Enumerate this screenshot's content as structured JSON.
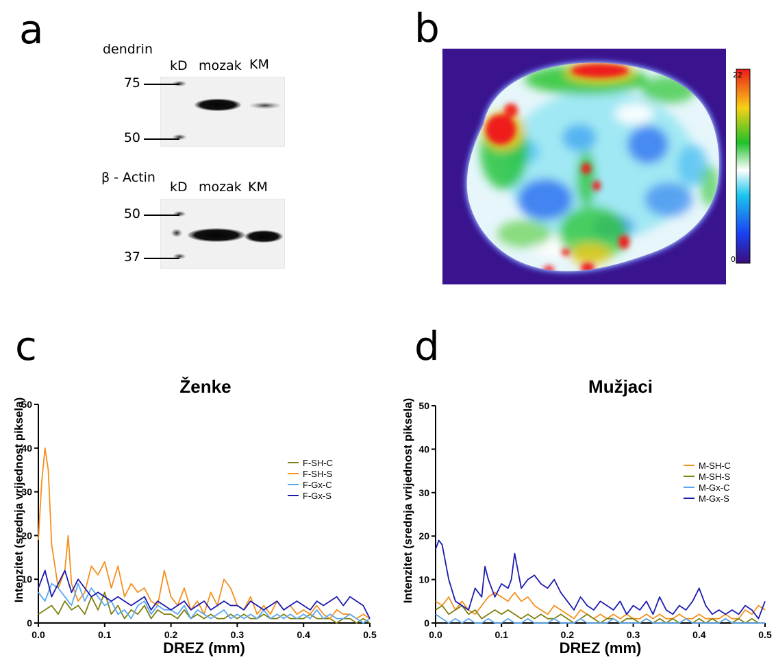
{
  "panel_a": {
    "letter": "a",
    "top_blot": {
      "protein": "dendrin",
      "lane_headers": [
        "kD",
        "mozak",
        "KM"
      ],
      "markers": [
        "75",
        "50"
      ]
    },
    "bottom_blot": {
      "protein": "β - Actin",
      "lane_headers": [
        "kD",
        "mozak",
        "KM"
      ],
      "markers": [
        "50",
        "37"
      ]
    }
  },
  "panel_b": {
    "letter": "b",
    "colorbar": {
      "max_label": "22",
      "min_label": "0"
    }
  },
  "chart_data": [
    {
      "panel": "c",
      "type": "line",
      "title": "Ženke",
      "xlabel": "DREZ (mm)",
      "ylabel": "Intenzitet (srednja vrijednost piksela)",
      "xlim": [
        0,
        0.5
      ],
      "ylim": [
        0,
        50
      ],
      "xticks": [
        "0.0",
        "0.1",
        "0.2",
        "0.3",
        "0.4",
        "0.5"
      ],
      "yticks": [
        "0",
        "10",
        "20",
        "30",
        "40",
        "50"
      ],
      "grid": false,
      "legend_position": "right",
      "series": [
        {
          "name": "F-SH-C",
          "color": "#7f7f10",
          "x": [
            0,
            0.01,
            0.02,
            0.03,
            0.04,
            0.05,
            0.06,
            0.07,
            0.08,
            0.09,
            0.1,
            0.11,
            0.12,
            0.13,
            0.14,
            0.15,
            0.16,
            0.17,
            0.18,
            0.19,
            0.2,
            0.21,
            0.22,
            0.23,
            0.24,
            0.25,
            0.26,
            0.27,
            0.28,
            0.29,
            0.3,
            0.31,
            0.32,
            0.33,
            0.34,
            0.35,
            0.36,
            0.37,
            0.38,
            0.39,
            0.4,
            0.41,
            0.42,
            0.43,
            0.44,
            0.45,
            0.46,
            0.47,
            0.48,
            0.49,
            0.5
          ],
          "y": [
            2,
            3,
            4,
            2,
            5,
            3,
            4,
            2,
            6,
            3,
            7,
            2,
            4,
            1,
            3,
            2,
            4,
            1,
            3,
            2,
            2,
            1,
            3,
            1,
            2,
            1,
            2,
            1,
            1,
            2,
            1,
            2,
            1,
            1,
            2,
            1,
            1,
            2,
            1,
            1,
            1,
            2,
            1,
            1,
            1,
            0,
            1,
            1,
            0,
            1,
            0
          ]
        },
        {
          "name": "F-SH-S",
          "color": "#f5901e",
          "x": [
            0,
            0.005,
            0.01,
            0.015,
            0.02,
            0.03,
            0.04,
            0.045,
            0.05,
            0.06,
            0.07,
            0.08,
            0.09,
            0.1,
            0.11,
            0.12,
            0.13,
            0.14,
            0.15,
            0.16,
            0.17,
            0.18,
            0.19,
            0.2,
            0.21,
            0.22,
            0.23,
            0.24,
            0.25,
            0.26,
            0.27,
            0.28,
            0.29,
            0.3,
            0.31,
            0.32,
            0.33,
            0.34,
            0.35,
            0.36,
            0.37,
            0.38,
            0.39,
            0.4,
            0.41,
            0.42,
            0.43,
            0.44,
            0.45,
            0.46,
            0.47,
            0.48,
            0.49,
            0.5
          ],
          "y": [
            19,
            32,
            40,
            35,
            18,
            8,
            12,
            20,
            9,
            5,
            7,
            13,
            11,
            14,
            8,
            13,
            6,
            9,
            7,
            8,
            5,
            4,
            12,
            6,
            4,
            8,
            3,
            5,
            2,
            7,
            4,
            10,
            8,
            4,
            3,
            6,
            2,
            4,
            2,
            5,
            3,
            4,
            2,
            3,
            2,
            4,
            2,
            1,
            3,
            2,
            2,
            1,
            2,
            1
          ]
        },
        {
          "name": "F-Gx-C",
          "color": "#5aa7ef",
          "x": [
            0,
            0.01,
            0.02,
            0.03,
            0.04,
            0.05,
            0.06,
            0.07,
            0.08,
            0.09,
            0.1,
            0.11,
            0.12,
            0.13,
            0.14,
            0.15,
            0.16,
            0.17,
            0.18,
            0.19,
            0.2,
            0.21,
            0.22,
            0.23,
            0.24,
            0.25,
            0.26,
            0.27,
            0.28,
            0.29,
            0.3,
            0.31,
            0.32,
            0.33,
            0.34,
            0.35,
            0.36,
            0.37,
            0.38,
            0.39,
            0.4,
            0.41,
            0.42,
            0.43,
            0.44,
            0.45,
            0.46,
            0.47,
            0.48,
            0.49,
            0.5
          ],
          "y": [
            7,
            5,
            9,
            8,
            6,
            4,
            9,
            5,
            8,
            6,
            4,
            5,
            2,
            3,
            1,
            4,
            5,
            2,
            4,
            3,
            3,
            2,
            4,
            1,
            3,
            2,
            1,
            2,
            3,
            1,
            2,
            1,
            2,
            1,
            3,
            1,
            2,
            1,
            2,
            1,
            2,
            1,
            3,
            1,
            2,
            1,
            1,
            2,
            1,
            0,
            1
          ]
        },
        {
          "name": "F-Gx-S",
          "color": "#1b1bb0",
          "x": [
            0,
            0.01,
            0.02,
            0.03,
            0.04,
            0.05,
            0.06,
            0.07,
            0.08,
            0.09,
            0.1,
            0.11,
            0.12,
            0.13,
            0.14,
            0.15,
            0.16,
            0.17,
            0.18,
            0.19,
            0.2,
            0.21,
            0.22,
            0.23,
            0.24,
            0.25,
            0.26,
            0.27,
            0.28,
            0.29,
            0.3,
            0.31,
            0.32,
            0.33,
            0.34,
            0.35,
            0.36,
            0.37,
            0.38,
            0.39,
            0.4,
            0.41,
            0.42,
            0.43,
            0.44,
            0.45,
            0.46,
            0.47,
            0.48,
            0.49,
            0.5
          ],
          "y": [
            8,
            12,
            6,
            9,
            12,
            7,
            10,
            8,
            6,
            7,
            6,
            5,
            6,
            5,
            4,
            5,
            6,
            3,
            5,
            4,
            3,
            4,
            5,
            3,
            4,
            5,
            3,
            4,
            5,
            4,
            4,
            3,
            5,
            4,
            3,
            4,
            5,
            3,
            4,
            5,
            4,
            3,
            5,
            4,
            5,
            6,
            4,
            6,
            5,
            4,
            1
          ]
        }
      ]
    },
    {
      "panel": "d",
      "type": "line",
      "title": "Mužjaci",
      "xlabel": "DREZ (mm)",
      "ylabel": "Intenzitet (srednja vrijednost piksela)",
      "xlim": [
        0,
        0.5
      ],
      "ylim": [
        0,
        50
      ],
      "xticks": [
        "0.0",
        "0.1",
        "0.2",
        "0.3",
        "0.4",
        "0.5"
      ],
      "yticks": [
        "0",
        "10",
        "20",
        "30",
        "40",
        "50"
      ],
      "grid": false,
      "legend_position": "right",
      "series": [
        {
          "name": "M-SH-C",
          "color": "#f5901e",
          "x": [
            0,
            0.01,
            0.02,
            0.03,
            0.04,
            0.05,
            0.06,
            0.07,
            0.08,
            0.09,
            0.1,
            0.11,
            0.12,
            0.13,
            0.14,
            0.15,
            0.16,
            0.17,
            0.18,
            0.19,
            0.2,
            0.21,
            0.22,
            0.23,
            0.24,
            0.25,
            0.26,
            0.27,
            0.28,
            0.29,
            0.3,
            0.31,
            0.32,
            0.33,
            0.34,
            0.35,
            0.36,
            0.37,
            0.38,
            0.39,
            0.4,
            0.41,
            0.42,
            0.43,
            0.44,
            0.45,
            0.46,
            0.47,
            0.48,
            0.49,
            0.5
          ],
          "y": [
            5,
            4,
            6,
            3,
            5,
            3,
            2,
            4,
            6,
            7,
            6,
            5,
            7,
            5,
            6,
            4,
            3,
            2,
            4,
            3,
            2,
            1,
            3,
            2,
            1,
            2,
            1,
            2,
            1,
            2,
            1,
            1,
            2,
            1,
            2,
            1,
            1,
            2,
            1,
            1,
            2,
            1,
            1,
            1,
            2,
            1,
            1,
            3,
            2,
            4,
            3
          ]
        },
        {
          "name": "M-SH-S",
          "color": "#7f7f10",
          "x": [
            0,
            0.01,
            0.02,
            0.03,
            0.04,
            0.05,
            0.06,
            0.07,
            0.08,
            0.09,
            0.1,
            0.11,
            0.12,
            0.13,
            0.14,
            0.15,
            0.16,
            0.17,
            0.18,
            0.19,
            0.2,
            0.21,
            0.22,
            0.23,
            0.24,
            0.25,
            0.26,
            0.27,
            0.28,
            0.29,
            0.3,
            0.31,
            0.32,
            0.33,
            0.34,
            0.35,
            0.36,
            0.37,
            0.38,
            0.39,
            0.4,
            0.41,
            0.42,
            0.43,
            0.44,
            0.45,
            0.46,
            0.47,
            0.48,
            0.49,
            0.5
          ],
          "y": [
            3,
            4,
            2,
            3,
            4,
            2,
            3,
            1,
            2,
            3,
            2,
            3,
            2,
            1,
            2,
            1,
            2,
            1,
            1,
            2,
            1,
            0,
            1,
            2,
            1,
            0,
            1,
            1,
            0,
            1,
            1,
            0,
            1,
            0,
            1,
            0,
            1,
            0,
            1,
            0,
            1,
            0,
            1,
            0,
            1,
            0,
            1,
            0,
            1,
            0,
            0
          ]
        },
        {
          "name": "M-Gx-C",
          "color": "#5aa7ef",
          "x": [
            0,
            0.01,
            0.02,
            0.03,
            0.04,
            0.05,
            0.06,
            0.07,
            0.08,
            0.09,
            0.1,
            0.11,
            0.12,
            0.13,
            0.14,
            0.15,
            0.16,
            0.17,
            0.18,
            0.19,
            0.2,
            0.21,
            0.22,
            0.23,
            0.24,
            0.25,
            0.26,
            0.27,
            0.28,
            0.29,
            0.3,
            0.31,
            0.32,
            0.33,
            0.34,
            0.35,
            0.36,
            0.37,
            0.38,
            0.39,
            0.4,
            0.41,
            0.42,
            0.43,
            0.44,
            0.45,
            0.46,
            0.47,
            0.48,
            0.49,
            0.5
          ],
          "y": [
            2,
            1,
            0,
            1,
            0,
            1,
            0,
            0,
            1,
            0,
            0,
            1,
            0,
            0,
            1,
            0,
            0,
            0,
            1,
            0,
            0,
            0,
            1,
            0,
            0,
            0,
            0,
            1,
            0,
            0,
            0,
            0,
            1,
            0,
            0,
            0,
            0,
            0,
            1,
            0,
            0,
            0,
            0,
            0,
            1,
            0,
            0,
            0,
            0,
            0,
            0
          ]
        },
        {
          "name": "M-Gx-S",
          "color": "#1b1bb0",
          "x": [
            0,
            0.005,
            0.01,
            0.02,
            0.03,
            0.04,
            0.05,
            0.06,
            0.07,
            0.075,
            0.08,
            0.09,
            0.1,
            0.11,
            0.115,
            0.12,
            0.13,
            0.14,
            0.15,
            0.16,
            0.17,
            0.18,
            0.19,
            0.2,
            0.21,
            0.22,
            0.23,
            0.24,
            0.25,
            0.26,
            0.27,
            0.28,
            0.29,
            0.3,
            0.31,
            0.32,
            0.33,
            0.34,
            0.35,
            0.36,
            0.37,
            0.38,
            0.39,
            0.4,
            0.41,
            0.42,
            0.43,
            0.44,
            0.45,
            0.46,
            0.47,
            0.48,
            0.49,
            0.5
          ],
          "y": [
            17,
            19,
            18,
            10,
            5,
            4,
            3,
            8,
            6,
            13,
            10,
            6,
            9,
            8,
            10,
            16,
            8,
            10,
            11,
            9,
            8,
            10,
            7,
            5,
            3,
            6,
            4,
            3,
            5,
            4,
            3,
            5,
            2,
            4,
            3,
            5,
            2,
            6,
            3,
            2,
            4,
            3,
            5,
            8,
            4,
            2,
            3,
            2,
            3,
            2,
            4,
            3,
            1,
            5
          ]
        }
      ]
    }
  ]
}
